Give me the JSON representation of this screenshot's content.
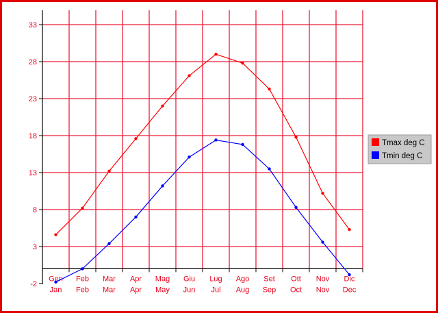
{
  "chart_data": {
    "type": "line",
    "title": "",
    "xlabel": "",
    "ylabel": "",
    "categories": [
      "Jan",
      "Feb",
      "Mar",
      "Apr",
      "May",
      "Jun",
      "Jul",
      "Aug",
      "Sep",
      "Oct",
      "Nov",
      "Dec"
    ],
    "categories_italian": [
      "Gen",
      "Feb",
      "Mar",
      "Apr",
      "Mag",
      "Giu",
      "Lug",
      "Ago",
      "Set",
      "Ott",
      "Nov",
      "Dic"
    ],
    "yticks": [
      -2,
      3,
      8,
      13,
      18,
      23,
      28,
      33
    ],
    "ylim": [
      -2,
      35
    ],
    "grid": true,
    "legend_position": "right",
    "series": [
      {
        "name": "Tmax deg C",
        "color": "#ff0000",
        "values": [
          4.6,
          8.2,
          13.2,
          17.6,
          22.0,
          26.1,
          29.0,
          27.8,
          24.3,
          17.8,
          10.2,
          5.3
        ]
      },
      {
        "name": "Tmin deg C",
        "color": "#0000ff",
        "values": [
          -1.8,
          0.0,
          3.4,
          7.0,
          11.2,
          15.1,
          17.4,
          16.8,
          13.5,
          8.3,
          3.6,
          -0.8
        ]
      }
    ],
    "colors": {
      "grid": "#ee1c3a",
      "axis": "#000000",
      "tick_label": "#e8001c",
      "frame": "#e00000",
      "legend_bg": "#c8c8c8"
    }
  }
}
